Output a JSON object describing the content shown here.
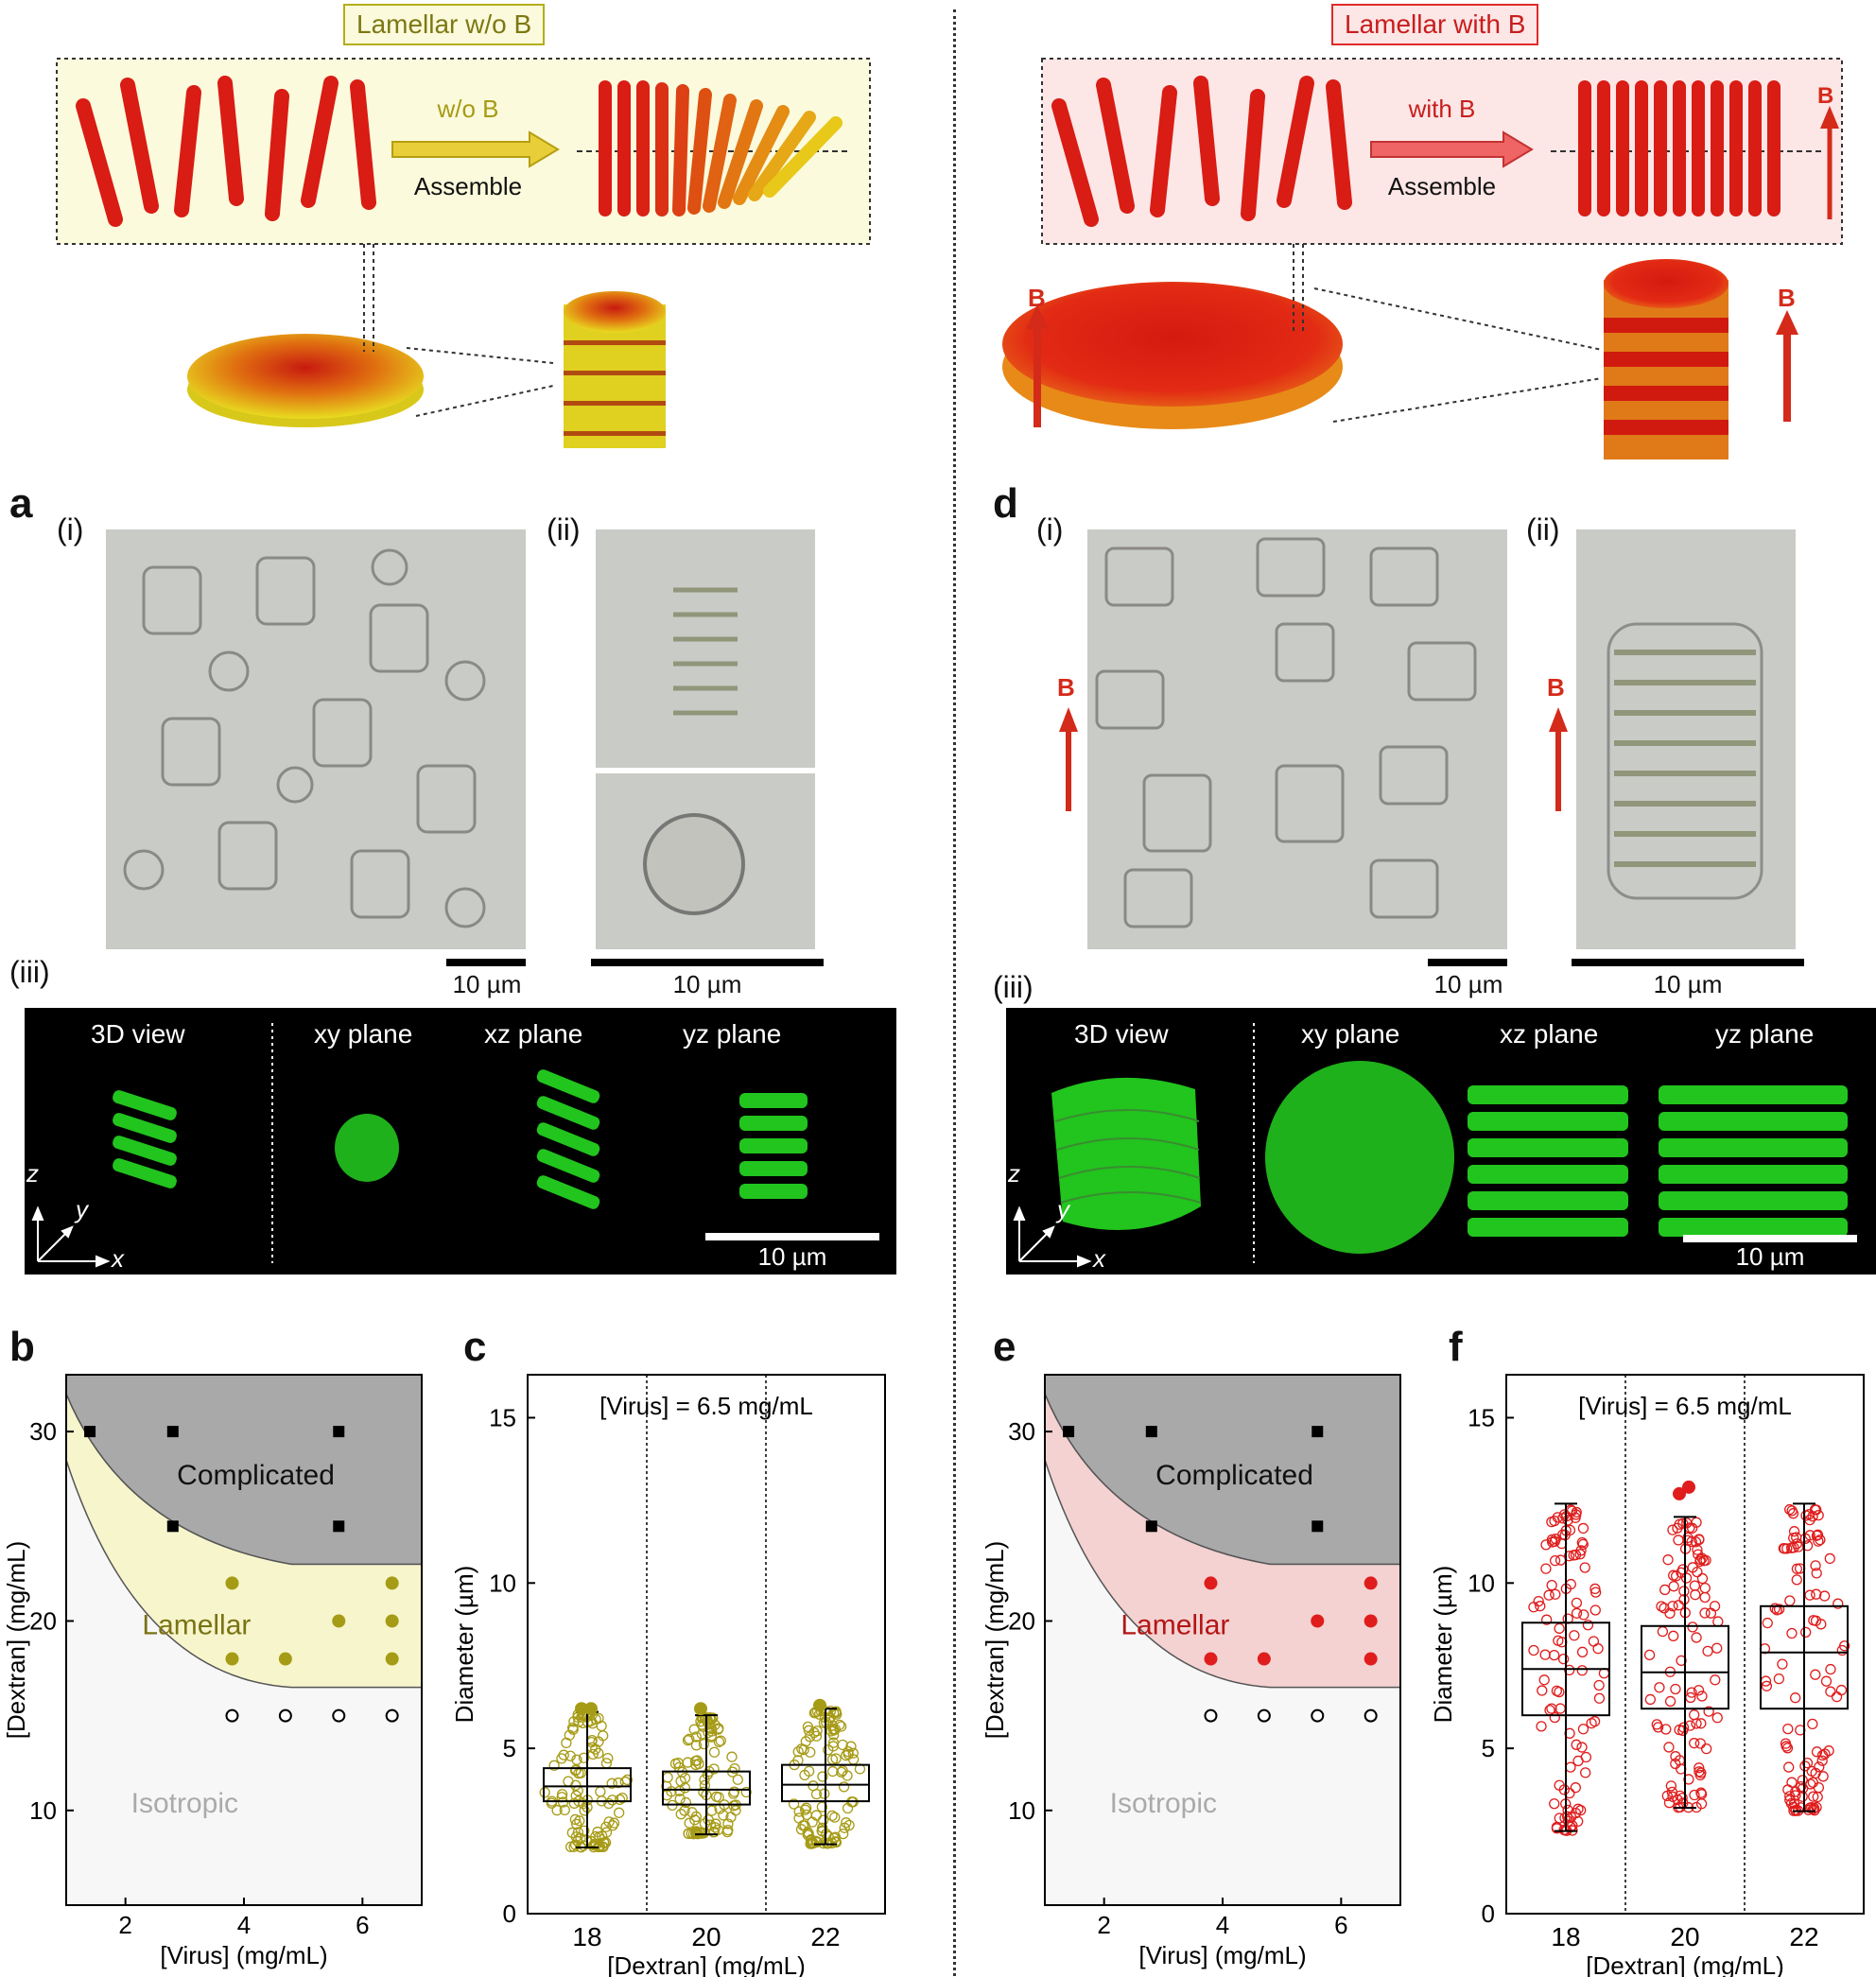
{
  "left": {
    "tag": "Lamellar w/o B",
    "arrow_label": "w/o B",
    "assemble": "Assemble",
    "panel_a": {
      "letter": "a",
      "sub_i": "(i)",
      "sub_ii": "(ii)",
      "sub_iii": "(iii)",
      "scale_i": "10 µm",
      "scale_ii": "10 µm",
      "fluo_labels": [
        "3D view",
        "xy plane",
        "xz plane",
        "yz plane"
      ],
      "fluo_scale": "10 µm",
      "axes": [
        "z",
        "y",
        "x"
      ]
    }
  },
  "right": {
    "tag": "Lamellar with B",
    "arrow_label": "with B",
    "assemble": "Assemble",
    "field_label": "B",
    "panel_d": {
      "letter": "d",
      "sub_i": "(i)",
      "sub_ii": "(ii)",
      "sub_iii": "(iii)",
      "field_label": "B",
      "scale_i": "10 µm",
      "scale_ii": "10 µm",
      "fluo_labels": [
        "3D view",
        "xy plane",
        "xz plane",
        "yz plane"
      ],
      "fluo_scale": "10 µm",
      "axes": [
        "z",
        "y",
        "x"
      ]
    }
  },
  "colors": {
    "yellow_bg": "#fbfadc",
    "yellow_border": "#b5ad18",
    "pink_bg": "#fce6e6",
    "pink_border": "#e02a2a",
    "rod_red": "#d91c14",
    "complicated_gray": "#a9a9a9",
    "lamellar_yellow": "#f7f5cc",
    "lamellar_pink": "#f4d2d2",
    "isotropic": "#f7f7f7",
    "olive_marker": "#a69b16",
    "red_marker": "#e01d1d",
    "green": "#22c41e"
  },
  "chart_data": [
    {
      "id": "b",
      "letter": "b",
      "type": "scatter",
      "xlabel": "[Virus] (mg/mL)",
      "ylabel": "[Dextran] (mg/mL)",
      "xlim": [
        1,
        7
      ],
      "ylim": [
        5,
        33
      ],
      "xticks": [
        2,
        4,
        6
      ],
      "yticks": [
        10,
        20,
        30
      ],
      "regions": [
        "Complicated",
        "Lamellar",
        "Isotropic"
      ],
      "series": [
        {
          "marker": "square",
          "points": [
            [
              1.4,
              30
            ],
            [
              2.8,
              30
            ],
            [
              5.6,
              30
            ],
            [
              2.8,
              25
            ],
            [
              5.6,
              25
            ]
          ]
        },
        {
          "marker": "dot",
          "points": [
            [
              3.8,
              22
            ],
            [
              6.5,
              22
            ],
            [
              5.6,
              20
            ],
            [
              6.5,
              20
            ],
            [
              3.8,
              18
            ],
            [
              4.7,
              18
            ],
            [
              6.5,
              18
            ]
          ]
        },
        {
          "marker": "open",
          "points": [
            [
              3.8,
              15
            ],
            [
              4.7,
              15
            ],
            [
              5.6,
              15
            ],
            [
              6.5,
              15
            ]
          ]
        }
      ]
    },
    {
      "id": "c",
      "letter": "c",
      "type": "box",
      "title": "[Virus] = 6.5 mg/mL",
      "xlabel": "[Dextran] (mg/mL)",
      "ylabel": "Diameter (µm)",
      "ylim": [
        0,
        16.3
      ],
      "yticks": [
        0,
        5,
        10,
        15
      ],
      "categories": [
        "18",
        "20",
        "22"
      ],
      "boxes": [
        {
          "min": 2.0,
          "q1": 3.4,
          "median": 3.85,
          "q3": 4.4,
          "max": 6.1,
          "outliers": [
            6.2,
            6.2
          ]
        },
        {
          "min": 2.4,
          "q1": 3.3,
          "median": 3.75,
          "q3": 4.3,
          "max": 6.0,
          "outliers": [
            6.2
          ]
        },
        {
          "min": 2.1,
          "q1": 3.4,
          "median": 3.9,
          "q3": 4.5,
          "max": 6.2,
          "outliers": [
            6.3
          ]
        }
      ]
    },
    {
      "id": "e",
      "letter": "e",
      "type": "scatter",
      "xlabel": "[Virus] (mg/mL)",
      "ylabel": "[Dextran] (mg/mL)",
      "xlim": [
        1,
        7
      ],
      "ylim": [
        5,
        33
      ],
      "xticks": [
        2,
        4,
        6
      ],
      "yticks": [
        10,
        20,
        30
      ],
      "regions": [
        "Complicated",
        "Lamellar",
        "Isotropic"
      ],
      "series": [
        {
          "marker": "square",
          "points": [
            [
              1.4,
              30
            ],
            [
              2.8,
              30
            ],
            [
              5.6,
              30
            ],
            [
              2.8,
              25
            ],
            [
              5.6,
              25
            ]
          ]
        },
        {
          "marker": "dot",
          "points": [
            [
              3.8,
              22
            ],
            [
              6.5,
              22
            ],
            [
              5.6,
              20
            ],
            [
              6.5,
              20
            ],
            [
              3.8,
              18
            ],
            [
              4.7,
              18
            ],
            [
              6.5,
              18
            ]
          ]
        },
        {
          "marker": "open",
          "points": [
            [
              3.8,
              15
            ],
            [
              4.7,
              15
            ],
            [
              5.6,
              15
            ],
            [
              6.5,
              15
            ]
          ]
        }
      ]
    },
    {
      "id": "f",
      "letter": "f",
      "type": "box",
      "title": "[Virus] = 6.5 mg/mL",
      "xlabel": "[Dextran] (mg/mL)",
      "ylabel": "Diameter (µm)",
      "ylim": [
        0,
        16.3
      ],
      "yticks": [
        0,
        5,
        10,
        15
      ],
      "categories": [
        "18",
        "20",
        "22"
      ],
      "boxes": [
        {
          "min": 2.5,
          "q1": 6.0,
          "median": 7.4,
          "q3": 8.8,
          "max": 12.4,
          "outliers": []
        },
        {
          "min": 3.2,
          "q1": 6.2,
          "median": 7.3,
          "q3": 8.7,
          "max": 12.0,
          "outliers": [
            12.7,
            12.9
          ]
        },
        {
          "min": 3.1,
          "q1": 6.2,
          "median": 7.9,
          "q3": 9.3,
          "max": 12.4,
          "outliers": []
        }
      ]
    }
  ]
}
